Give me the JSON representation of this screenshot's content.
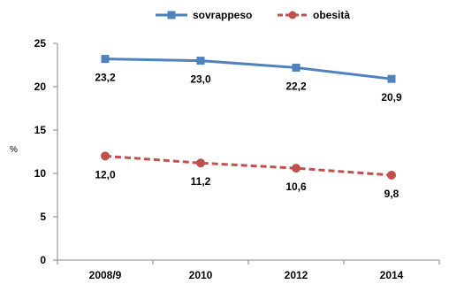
{
  "chart_data": {
    "type": "line",
    "categories": [
      "2008/9",
      "2010",
      "2012",
      "2014"
    ],
    "ylabel": "%",
    "ylim": [
      0,
      25
    ],
    "yticks": [
      "0",
      "5",
      "10",
      "15",
      "20",
      "25"
    ],
    "grid": false,
    "legend_position": "top",
    "series": [
      {
        "name": "sovrappeso",
        "values": [
          23.2,
          23.0,
          22.2,
          20.9
        ],
        "labels": [
          "23,2",
          "23,0",
          "22,2",
          "20,9"
        ],
        "color": "#4F81BD",
        "marker": "square",
        "line_style": "solid"
      },
      {
        "name": "obesità",
        "values": [
          12.0,
          11.2,
          10.6,
          9.8
        ],
        "labels": [
          "12,0",
          "11,2",
          "10,6",
          "9,8"
        ],
        "color": "#C0504D",
        "marker": "circle",
        "line_style": "dashed"
      }
    ]
  }
}
